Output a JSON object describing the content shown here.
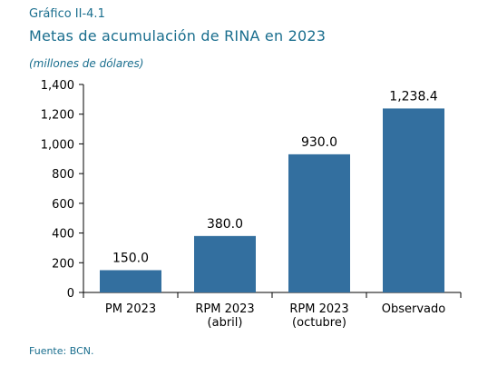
{
  "header": {
    "figure_number": "Gráfico II-4.1",
    "title": "Metas de acumulación de RINA en 2023",
    "subtitle": "(millones de dólares)"
  },
  "footer": {
    "source": "Fuente: BCN."
  },
  "colors": {
    "bar": "#336f9f",
    "text_accent": "#1a6e8e"
  },
  "chart_data": {
    "type": "bar",
    "title": "Metas de acumulación de RINA en 2023",
    "ylabel": "(millones de dólares)",
    "categories": [
      [
        "PM 2023"
      ],
      [
        "RPM 2023",
        "(abril)"
      ],
      [
        "RPM 2023",
        "(octubre)"
      ],
      [
        "Observado"
      ]
    ],
    "values": [
      150.0,
      380.0,
      930.0,
      1238.4
    ],
    "data_labels": [
      "150.0",
      "380.0",
      "930.0",
      "1,238.4"
    ],
    "ylim": [
      0,
      1400
    ],
    "yticks": [
      0,
      200,
      400,
      600,
      800,
      1000,
      1200,
      1400
    ],
    "ytick_labels": [
      "0",
      "200",
      "400",
      "600",
      "800",
      "1,000",
      "1,200",
      "1,400"
    ],
    "grid": false,
    "legend": "none"
  }
}
